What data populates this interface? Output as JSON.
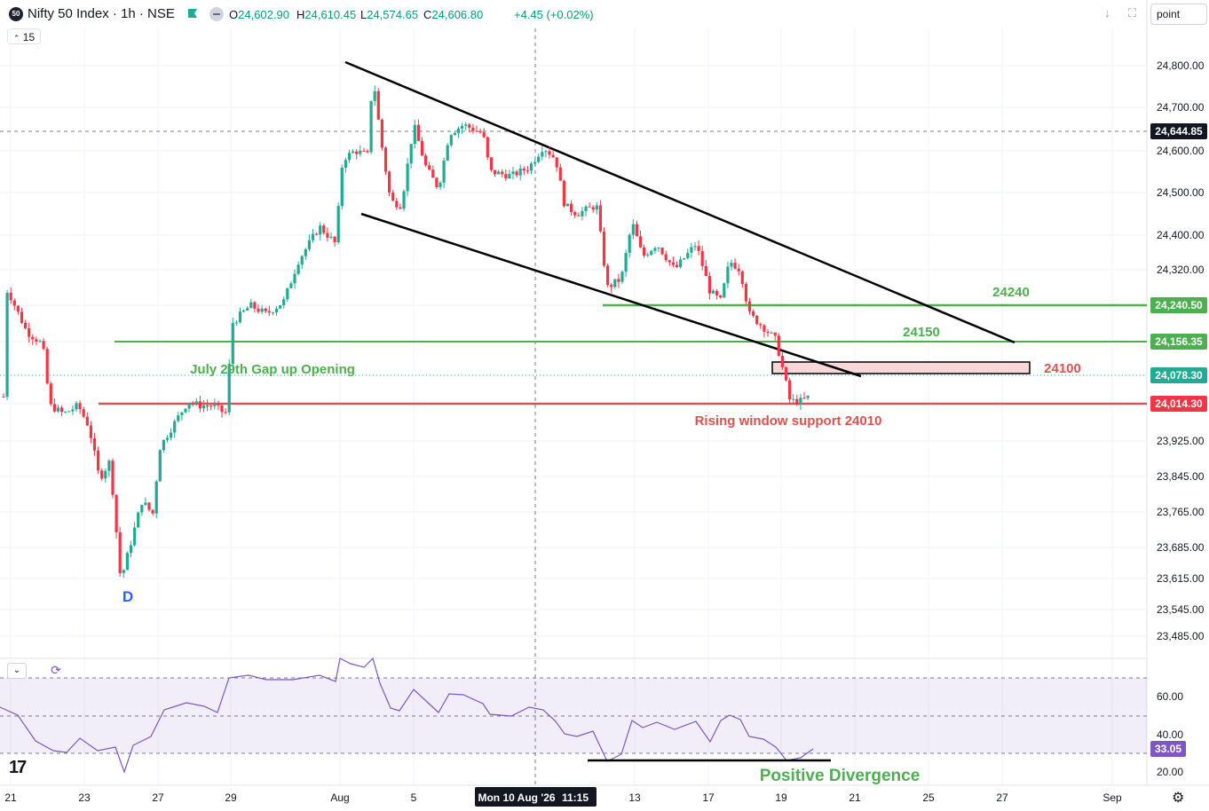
{
  "header": {
    "badge": "50",
    "title": "Nifty 50 Index · 1h · NSE",
    "ohlc": [
      {
        "k": "O",
        "v": "24,602.90"
      },
      {
        "k": "H",
        "v": "24,610.45"
      },
      {
        "k": "L",
        "v": "24,574.65"
      },
      {
        "k": "C",
        "v": "24,606.80"
      }
    ],
    "change": "+4.45 (+0.02%)",
    "interval_count": "15",
    "mode_value": "point"
  },
  "colors": {
    "up": "#22ab94",
    "down": "#f23645",
    "support_green": "#4caf50",
    "support_red": "#d9534f",
    "trend": "#000000",
    "rsi": "#7e57c2"
  },
  "chart_data": {
    "type": "candlestick",
    "title": "Nifty 50 Index · 1h · NSE",
    "price_axis_ticks": [
      "24,800.00",
      "24,700.00",
      "24,600.00",
      "24,500.00",
      "24,400.00",
      "24,320.00",
      "23,925.00",
      "23,845.00",
      "23,765.00",
      "23,685.00",
      "23,615.00",
      "23,545.00",
      "23,485.00"
    ],
    "price_labels": [
      {
        "text": "24,644.85",
        "style": "dark"
      },
      {
        "text": "24,240.50",
        "style": "green"
      },
      {
        "text": "24,156.35",
        "style": "green"
      },
      {
        "text": "24,078.30",
        "style": "teal"
      },
      {
        "text": "24,014.30",
        "style": "red"
      }
    ],
    "time_axis_ticks": [
      "21",
      "23",
      "27",
      "29",
      "Aug",
      "5",
      "13",
      "17",
      "19",
      "21",
      "25",
      "27",
      "Sep"
    ],
    "crosshair_time": "Mon 10 Aug '26",
    "crosshair_time2": "11:15",
    "horizontal_levels": [
      {
        "value": 24240,
        "label": "24240",
        "color": "green"
      },
      {
        "value": 24150,
        "label": "24150",
        "color": "green"
      },
      {
        "value": 24010,
        "label": "Rising window support 24010",
        "color": "red"
      }
    ],
    "zone": {
      "label": "24100",
      "low": 24070,
      "high": 24100
    },
    "annotations": [
      "July 29th Gap up Opening",
      "D",
      "Positive Divergence"
    ],
    "rsi": {
      "ticks": [
        "60.00",
        "40.00",
        "20.00"
      ],
      "current": "33.05",
      "upper": 70,
      "lower": 30
    }
  }
}
